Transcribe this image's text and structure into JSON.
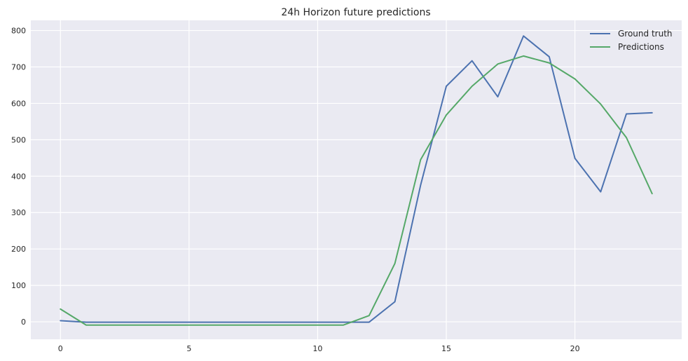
{
  "chart_data": {
    "type": "line",
    "title": "24h Horizon future predictions",
    "xlabel": "",
    "ylabel": "",
    "xlim": [
      -1.15,
      24.15
    ],
    "ylim": [
      -48,
      828
    ],
    "x_ticks": [
      0,
      5,
      10,
      15,
      20
    ],
    "y_ticks": [
      0,
      100,
      200,
      300,
      400,
      500,
      600,
      700,
      800
    ],
    "grid": true,
    "legend_position": "top-right",
    "x": [
      0,
      1,
      2,
      3,
      4,
      5,
      6,
      7,
      8,
      9,
      10,
      11,
      12,
      13,
      14,
      15,
      16,
      17,
      18,
      19,
      20,
      21,
      22,
      23
    ],
    "series": [
      {
        "name": "Ground truth",
        "color": "#4C72B0",
        "values": [
          3,
          -1,
          -1,
          -1,
          -1,
          -1,
          -1,
          -1,
          -1,
          -1,
          -1,
          -1,
          -1,
          55,
          375,
          647,
          717,
          618,
          785,
          728,
          449,
          357,
          571,
          574
        ]
      },
      {
        "name": "Predictions",
        "color": "#55A868",
        "values": [
          35,
          -9,
          -9,
          -9,
          -9,
          -9,
          -9,
          -9,
          -9,
          -9,
          -9,
          -9,
          17,
          160,
          445,
          568,
          647,
          708,
          730,
          711,
          667,
          598,
          506,
          352
        ]
      }
    ],
    "colors": {
      "plot_background": "#EAEAF2",
      "grid": "#FFFFFF",
      "text": "#262626"
    }
  }
}
